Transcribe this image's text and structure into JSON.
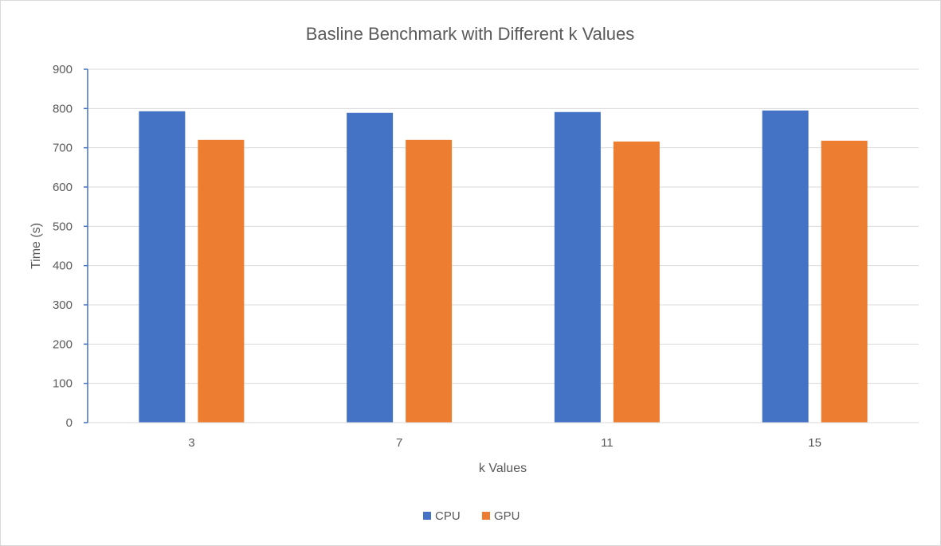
{
  "chart_data": {
    "type": "bar",
    "title": "Basline Benchmark with Different k Values",
    "xlabel": "k Values",
    "ylabel": "Time (s)",
    "categories": [
      "3",
      "7",
      "11",
      "15"
    ],
    "series": [
      {
        "name": "CPU",
        "color": "#4472C4",
        "values": [
          793,
          789,
          791,
          795
        ]
      },
      {
        "name": "GPU",
        "color": "#ED7D31",
        "values": [
          720,
          720,
          716,
          718
        ]
      }
    ],
    "ylim": [
      0,
      900
    ],
    "yticks": [
      "0",
      "100",
      "200",
      "300",
      "400",
      "500",
      "600",
      "700",
      "800",
      "900"
    ],
    "grid": true,
    "legend_position": "bottom"
  }
}
